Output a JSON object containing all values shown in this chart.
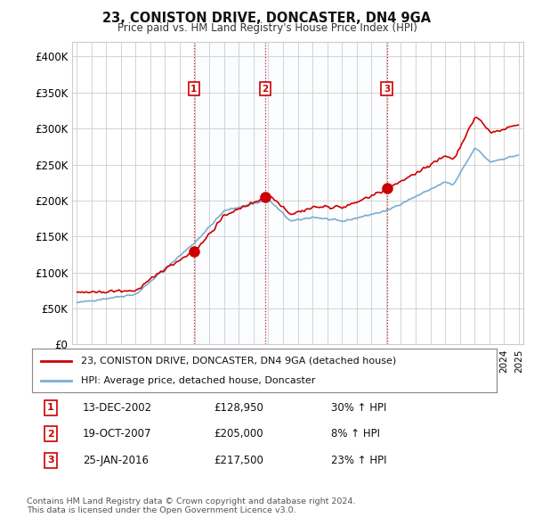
{
  "title": "23, CONISTON DRIVE, DONCASTER, DN4 9GA",
  "subtitle": "Price paid vs. HM Land Registry's House Price Index (HPI)",
  "ylim": [
    0,
    420000
  ],
  "yticks": [
    0,
    50000,
    100000,
    150000,
    200000,
    250000,
    300000,
    350000,
    400000
  ],
  "ytick_labels": [
    "£0",
    "£50K",
    "£100K",
    "£150K",
    "£200K",
    "£250K",
    "£300K",
    "£350K",
    "£400K"
  ],
  "legend_line1": "23, CONISTON DRIVE, DONCASTER, DN4 9GA (detached house)",
  "legend_line2": "HPI: Average price, detached house, Doncaster",
  "sale1_date": "13-DEC-2002",
  "sale1_price": "£128,950",
  "sale1_hpi": "30% ↑ HPI",
  "sale2_date": "19-OCT-2007",
  "sale2_price": "£205,000",
  "sale2_hpi": "8% ↑ HPI",
  "sale3_date": "25-JAN-2016",
  "sale3_price": "£217,500",
  "sale3_hpi": "23% ↑ HPI",
  "footer": "Contains HM Land Registry data © Crown copyright and database right 2024.\nThis data is licensed under the Open Government Licence v3.0.",
  "red_color": "#cc0000",
  "blue_color": "#7aadcf",
  "background": "#ffffff",
  "grid_color": "#cccccc",
  "shade_color": "#ddeeff"
}
